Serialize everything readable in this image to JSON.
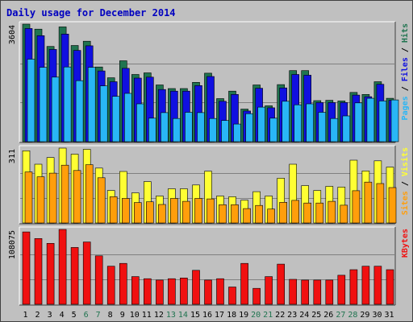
{
  "title": "Daily usage for December 2014",
  "colors": {
    "background": "#c0c0c0",
    "hits": "#207450",
    "files": "#1010e0",
    "pages": "#29b6f6",
    "visits": "#ffff33",
    "sites": "#ff9e0b",
    "kbytes": "#f01010",
    "title": "#0000c0",
    "weekend_label": "#207450",
    "weekday_label": "#000000"
  },
  "chart_data": {
    "type": "bar",
    "title": "Daily usage for December 2014",
    "categories": [
      "1",
      "2",
      "3",
      "4",
      "5",
      "6",
      "7",
      "8",
      "9",
      "10",
      "11",
      "12",
      "13",
      "14",
      "15",
      "16",
      "17",
      "18",
      "19",
      "20",
      "21",
      "22",
      "23",
      "24",
      "25",
      "26",
      "27",
      "28",
      "29",
      "30",
      "31"
    ],
    "weekend_days": [
      "6",
      "7",
      "13",
      "14",
      "20",
      "21",
      "27",
      "28"
    ],
    "panels": [
      {
        "name": "hits-files-pages",
        "max_label": "3604",
        "ylim": [
          0,
          3604
        ],
        "legend": [
          {
            "text": "Hits",
            "color_key": "hits"
          },
          {
            "text": "Files",
            "color_key": "files"
          },
          {
            "text": "Pages",
            "color_key": "pages"
          }
        ],
        "series": [
          {
            "name": "Hits",
            "color_key": "hits",
            "values": [
              3604,
              3450,
              2920,
              3520,
              2950,
              3080,
              2290,
              1960,
              2480,
              2060,
              2110,
              1740,
              1630,
              1630,
              1820,
              2100,
              1320,
              1550,
              1000,
              1740,
              1100,
              1750,
              2180,
              2180,
              1260,
              1270,
              1250,
              1510,
              1450,
              1840,
              1330
            ]
          },
          {
            "name": "Files",
            "color_key": "files",
            "values": [
              3470,
              3250,
              2830,
              3300,
              2800,
              2940,
              2170,
              1840,
              2250,
              1950,
              1980,
              1600,
              1550,
              1550,
              1720,
              2000,
              1240,
              1450,
              940,
              1640,
              1040,
              1650,
              2060,
              2040,
              1200,
              1200,
              1200,
              1430,
              1380,
              1760,
              1270
            ]
          },
          {
            "name": "Pages",
            "color_key": "pages",
            "values": [
              2530,
              2280,
              1980,
              2290,
              1870,
              2280,
              1710,
              1390,
              1480,
              1160,
              720,
              890,
              710,
              900,
              890,
              710,
              650,
              540,
              860,
              1060,
              720,
              1240,
              1130,
              1160,
              900,
              710,
              790,
              1190,
              1330,
              1250,
              1280
            ]
          }
        ]
      },
      {
        "name": "visits-sites",
        "max_label": "311",
        "ylim": [
          0,
          311
        ],
        "legend": [
          {
            "text": "Visits",
            "color_key": "visits"
          },
          {
            "text": "Sites",
            "color_key": "sites"
          }
        ],
        "series": [
          {
            "name": "Visits",
            "color_key": "visits",
            "values": [
              300,
              244,
              272,
              311,
              286,
              306,
              228,
              135,
              214,
              125,
              172,
              112,
              142,
              142,
              158,
              215,
              112,
              109,
              95,
              130,
              112,
              186,
              244,
              155,
              135,
              152,
              149,
              261,
              216,
              258,
              232
            ]
          },
          {
            "name": "Sites",
            "color_key": "sites",
            "values": [
              212,
              192,
              207,
              240,
              218,
              242,
              188,
              109,
              102,
              85,
              88,
              77,
              102,
              90,
              102,
              100,
              76,
              76,
              60,
              73,
              58,
              86,
              94,
              83,
              83,
              90,
              74,
              134,
              170,
              164,
              147
            ]
          }
        ]
      },
      {
        "name": "kbytes",
        "max_label": "108075",
        "ylim": [
          0,
          108075
        ],
        "legend": [
          {
            "text": "KBytes",
            "color_key": "kbytes"
          }
        ],
        "series": [
          {
            "name": "KBytes",
            "color_key": "kbytes",
            "values": [
              104500,
              95000,
              88000,
              108075,
              82000,
              90000,
              70000,
              55000,
              59000,
              40000,
              37000,
              35000,
              37000,
              38000,
              49000,
              35000,
              37000,
              25000,
              59000,
              23000,
              40000,
              58000,
              36000,
              35000,
              35000,
              35000,
              42000,
              50000,
              55000,
              55000,
              50000
            ]
          }
        ]
      }
    ]
  }
}
